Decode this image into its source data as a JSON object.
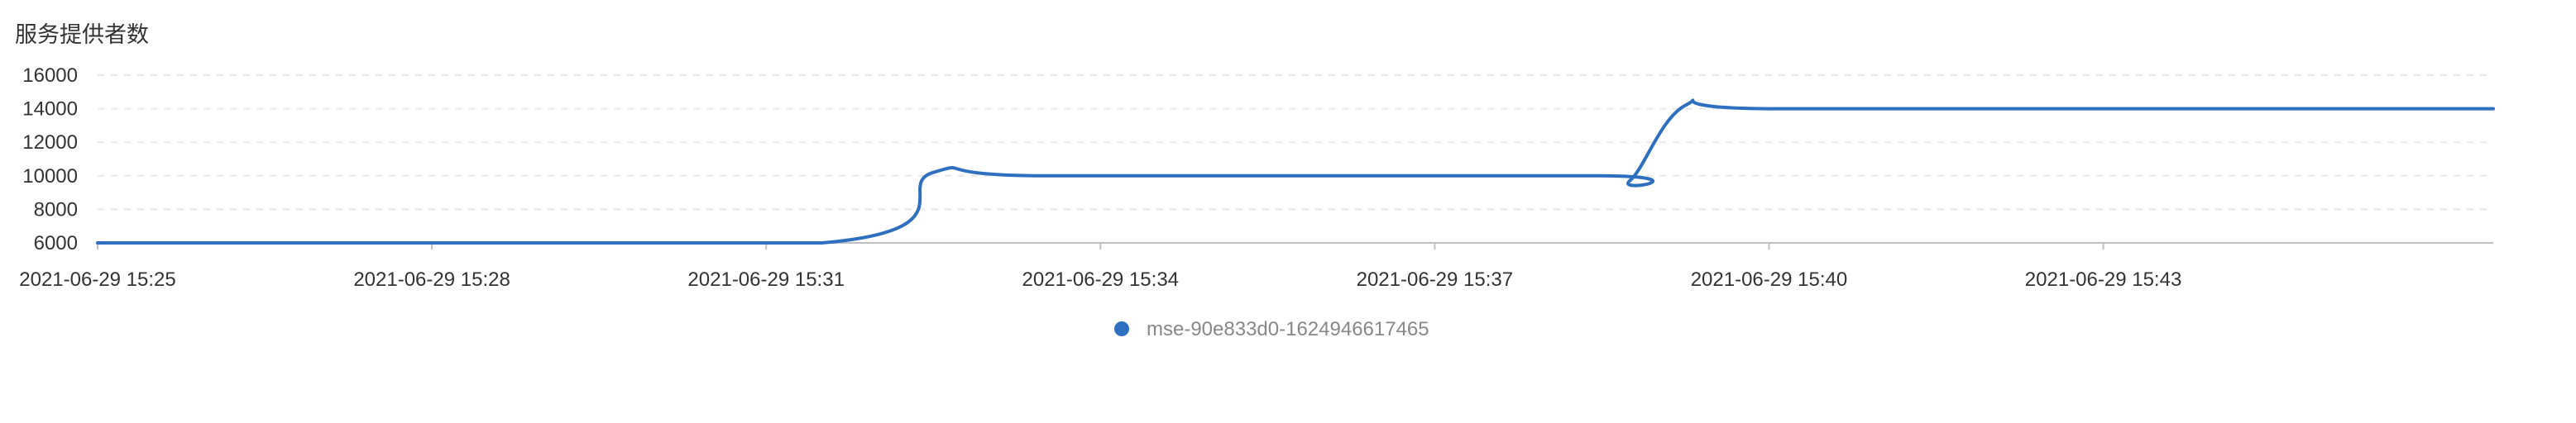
{
  "chart_data": {
    "type": "line",
    "title": "服务提供者数",
    "xlabel": "",
    "ylabel": "",
    "ylim": [
      6000,
      16000
    ],
    "yticks": [
      6000,
      8000,
      10000,
      12000,
      14000,
      16000
    ],
    "xlim": [
      "2021-06-29 15:25",
      "2021-06-29 15:46:30"
    ],
    "xticks": [
      "2021-06-29 15:25",
      "2021-06-29 15:28",
      "2021-06-29 15:31",
      "2021-06-29 15:34",
      "2021-06-29 15:37",
      "2021-06-29 15:40",
      "2021-06-29 15:43"
    ],
    "grid": true,
    "legend_position": "bottom-center",
    "series": [
      {
        "name": "mse-90e833d0-1624946617465",
        "color": "#2f6fbf",
        "points": [
          [
            "2021-06-29 15:25",
            6000
          ],
          [
            "2021-06-29 15:31:30",
            6000
          ],
          [
            "2021-06-29 15:32:30",
            10200
          ],
          [
            "2021-06-29 15:33:30",
            10000
          ],
          [
            "2021-06-29 15:38:30",
            10000
          ],
          [
            "2021-06-29 15:38:45",
            9700
          ],
          [
            "2021-06-29 15:39:15",
            14200
          ],
          [
            "2021-06-29 15:40",
            14000
          ],
          [
            "2021-06-29 15:45",
            14000
          ],
          [
            "2021-06-29 15:46:30",
            14000
          ]
        ]
      }
    ]
  }
}
